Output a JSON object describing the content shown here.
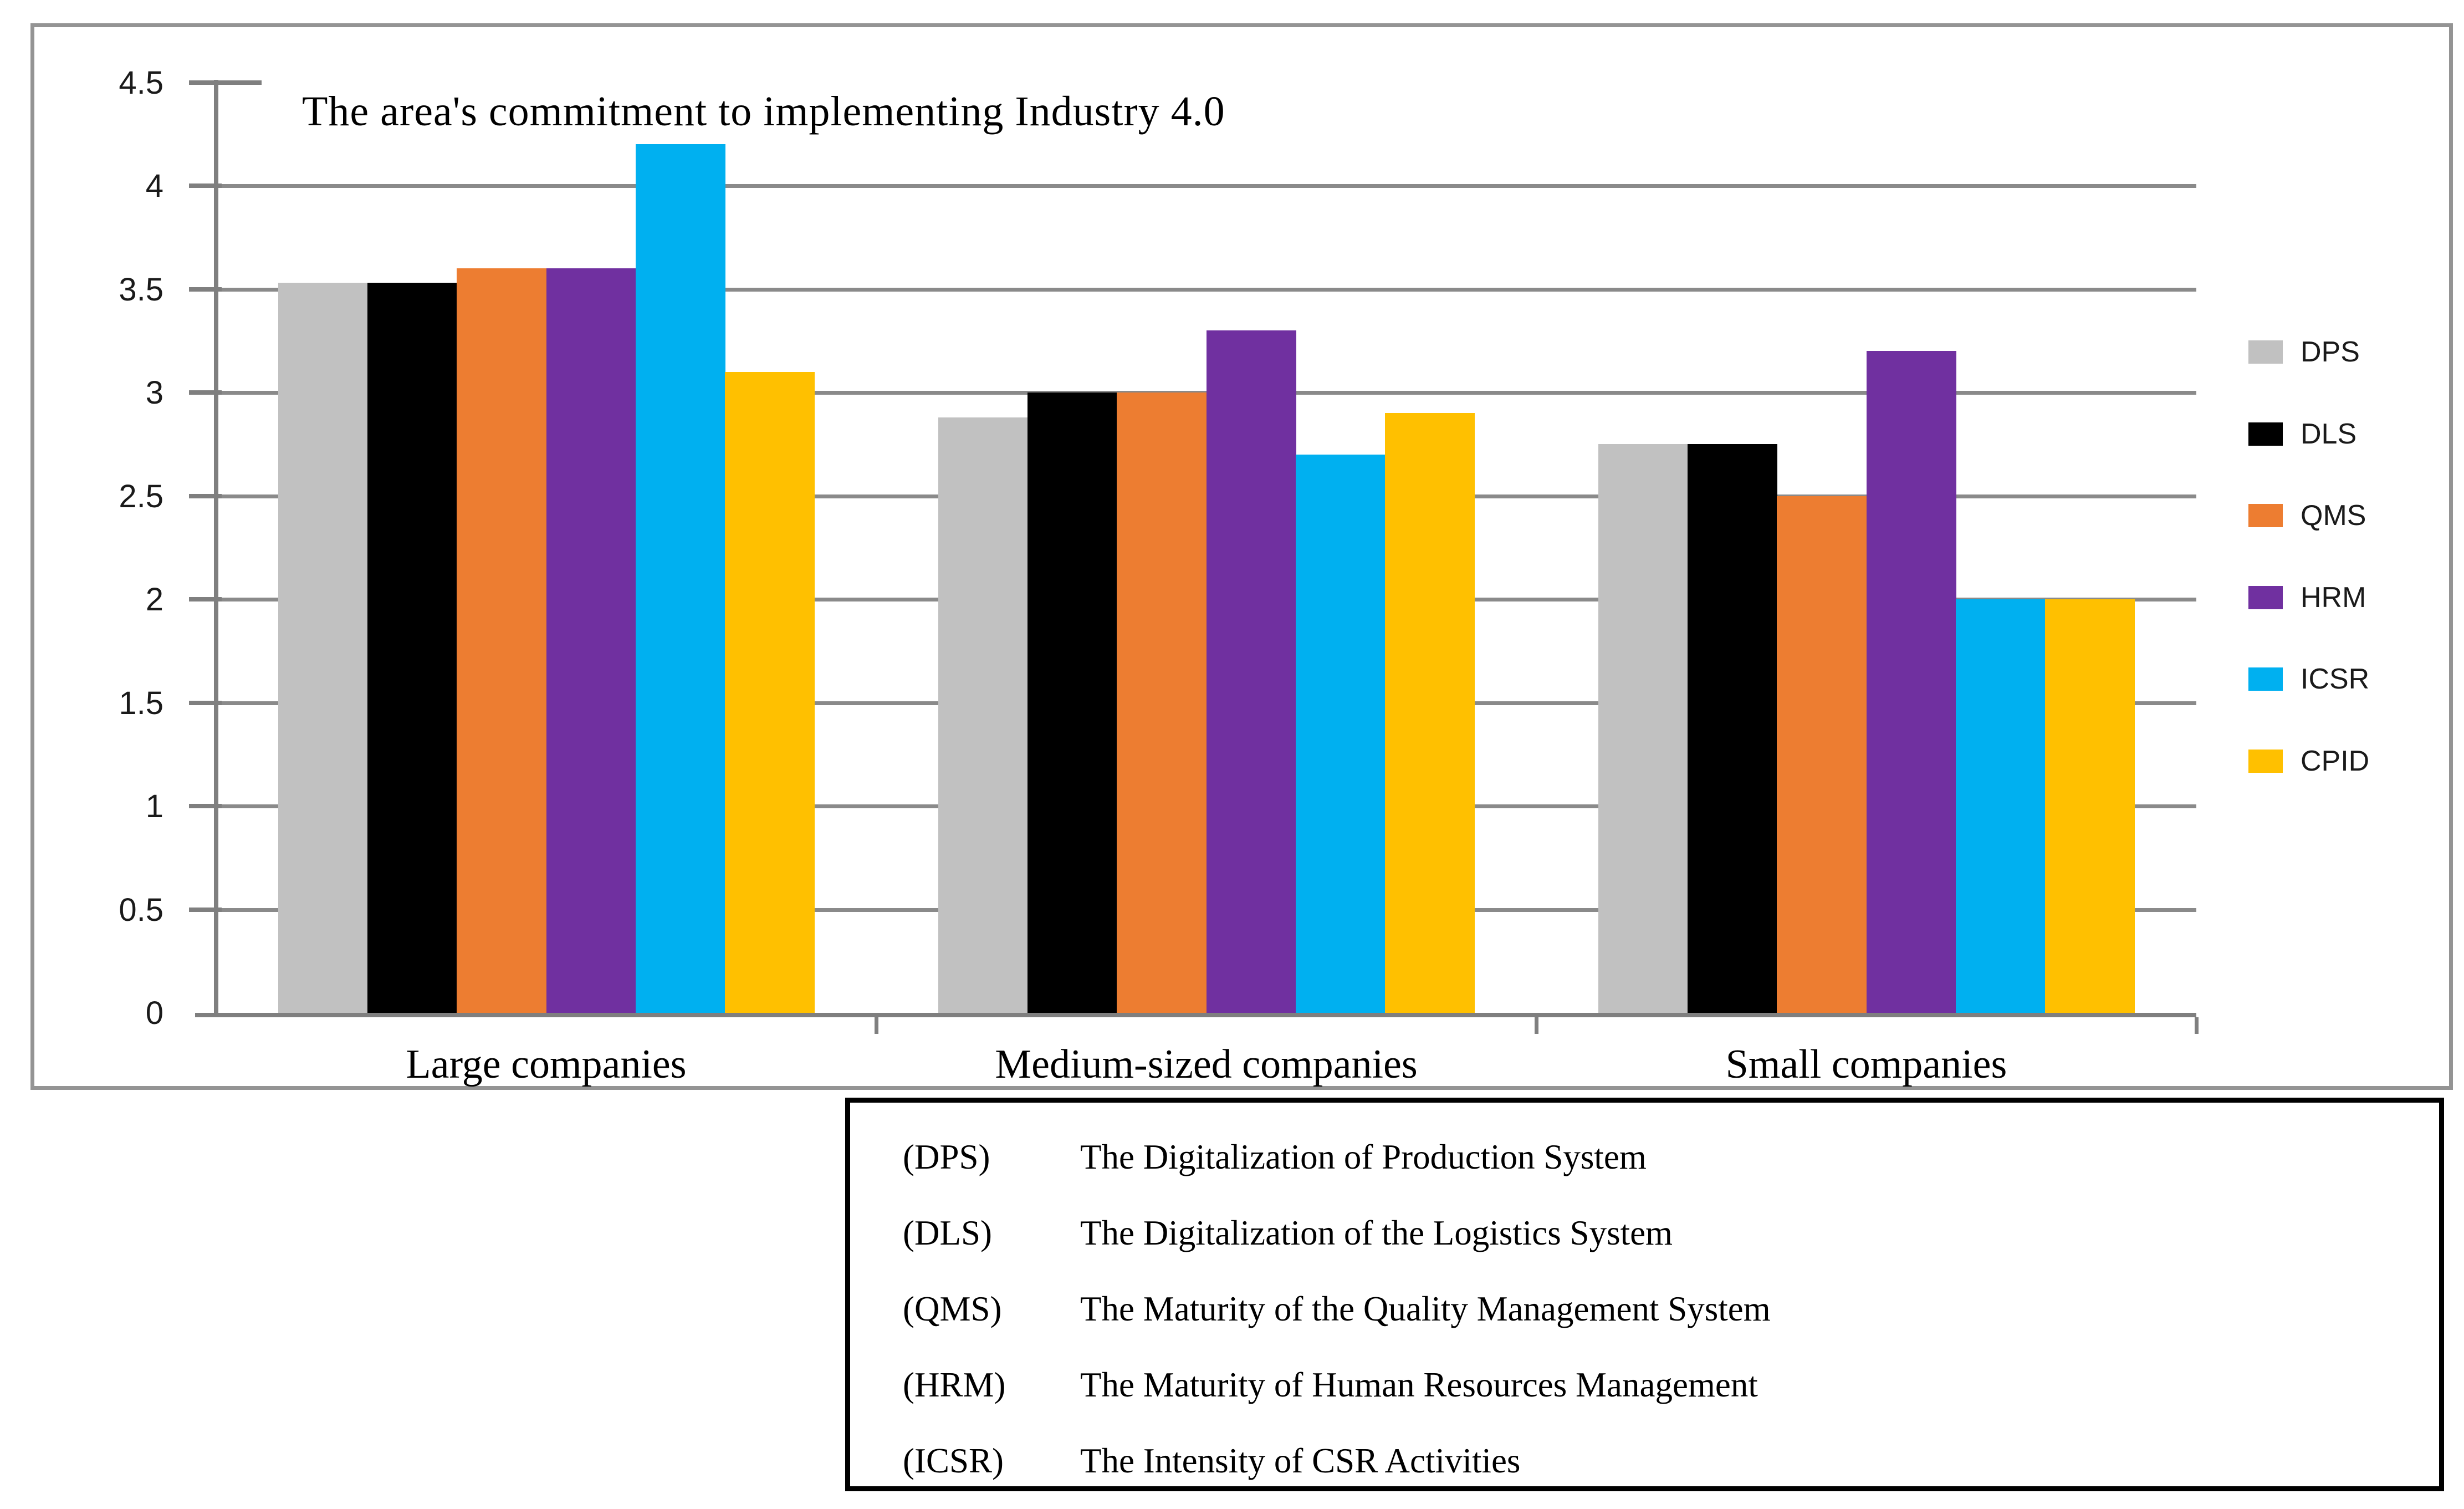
{
  "chart_data": {
    "type": "bar",
    "title": "The area's commitment to implementing Industry 4.0",
    "categories": [
      "Large companies",
      "Medium-sized companies",
      "Small companies"
    ],
    "series": [
      {
        "name": "DPS",
        "color": "#C1C1C1",
        "values": [
          3.53,
          2.88,
          2.75
        ]
      },
      {
        "name": "DLS",
        "color": "#000000",
        "values": [
          3.53,
          3.0,
          2.75
        ]
      },
      {
        "name": "QMS",
        "color": "#ED7D31",
        "values": [
          3.6,
          3.0,
          2.5
        ]
      },
      {
        "name": "HRM",
        "color": "#7030A0",
        "values": [
          3.6,
          3.3,
          3.2
        ]
      },
      {
        "name": "ICSR",
        "color": "#00B0F0",
        "values": [
          4.2,
          2.7,
          2.0
        ]
      },
      {
        "name": "CPID",
        "color": "#FFC000",
        "values": [
          3.1,
          2.9,
          2.0
        ]
      }
    ],
    "xlabel": "",
    "ylabel": "",
    "ylim": [
      0,
      4.5
    ],
    "yticks": [
      0,
      0.5,
      1,
      1.5,
      2,
      2.5,
      3,
      3.5,
      4,
      4.5
    ],
    "grid": "horizontal",
    "legend_position": "right"
  },
  "abbreviation_key": {
    "entries": [
      {
        "abbr": "(DPS)",
        "description": "The Digitalization of Production System"
      },
      {
        "abbr": "(DLS)",
        "description": "The Digitalization of the Logistics System"
      },
      {
        "abbr": "(QMS)",
        "description": "The Maturity of the Quality Management System"
      },
      {
        "abbr": "(HRM)",
        "description": "The Maturity of Human Resources Management"
      },
      {
        "abbr": "(ICSR)",
        "description": "The Intensity of CSR Activities"
      }
    ]
  }
}
